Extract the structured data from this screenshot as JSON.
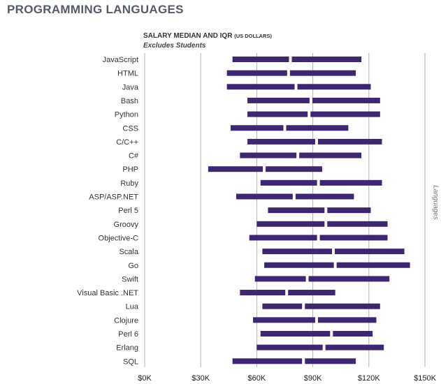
{
  "page_title": "PROGRAMMING LANGUAGES",
  "side_label": "Languages",
  "colors": {
    "bar": "#3d2772",
    "grid": "#b3b3b3",
    "axis_text": "#222222"
  },
  "chart_data": {
    "type": "bar",
    "orientation": "horizontal-range",
    "title": "SALARY MEDIAN AND IQR",
    "title_units": "(US DOLLARS)",
    "subtitle": "Excludes Students",
    "xlim": [
      0,
      150000
    ],
    "xticks": [
      0,
      30000,
      60000,
      90000,
      120000,
      150000
    ],
    "xtick_labels": [
      "$0K",
      "$30K",
      "$60K",
      "$90K",
      "$120K",
      "$150K"
    ],
    "grid": true,
    "categories": [
      "JavaScript",
      "HTML",
      "Java",
      "Bash",
      "Python",
      "CSS",
      "C/C++",
      "C#",
      "PHP",
      "Ruby",
      "ASP/ASP.NET",
      "Perl 5",
      "Groovy",
      "Objective-C",
      "Scala",
      "Go",
      "Swift",
      "Visual Basic .NET",
      "Lua",
      "Clojure",
      "Perl 6",
      "Erlang",
      "SQL"
    ],
    "q1": [
      47000,
      44000,
      44000,
      55000,
      55000,
      46000,
      55000,
      51000,
      34000,
      62000,
      49000,
      66000,
      60000,
      56000,
      63000,
      64000,
      59000,
      51000,
      63000,
      58000,
      62000,
      60000,
      47000
    ],
    "median": [
      78000,
      77000,
      81000,
      89000,
      88000,
      75000,
      92000,
      82000,
      64000,
      93000,
      80000,
      97000,
      97000,
      93000,
      101000,
      102000,
      87000,
      76000,
      85000,
      92000,
      100000,
      96000,
      85000
    ],
    "q3": [
      116000,
      113000,
      121000,
      126000,
      126000,
      109000,
      127000,
      116000,
      95000,
      127000,
      112000,
      121000,
      130000,
      130000,
      139000,
      142000,
      131000,
      102000,
      126000,
      124000,
      122000,
      128000,
      113000
    ]
  }
}
